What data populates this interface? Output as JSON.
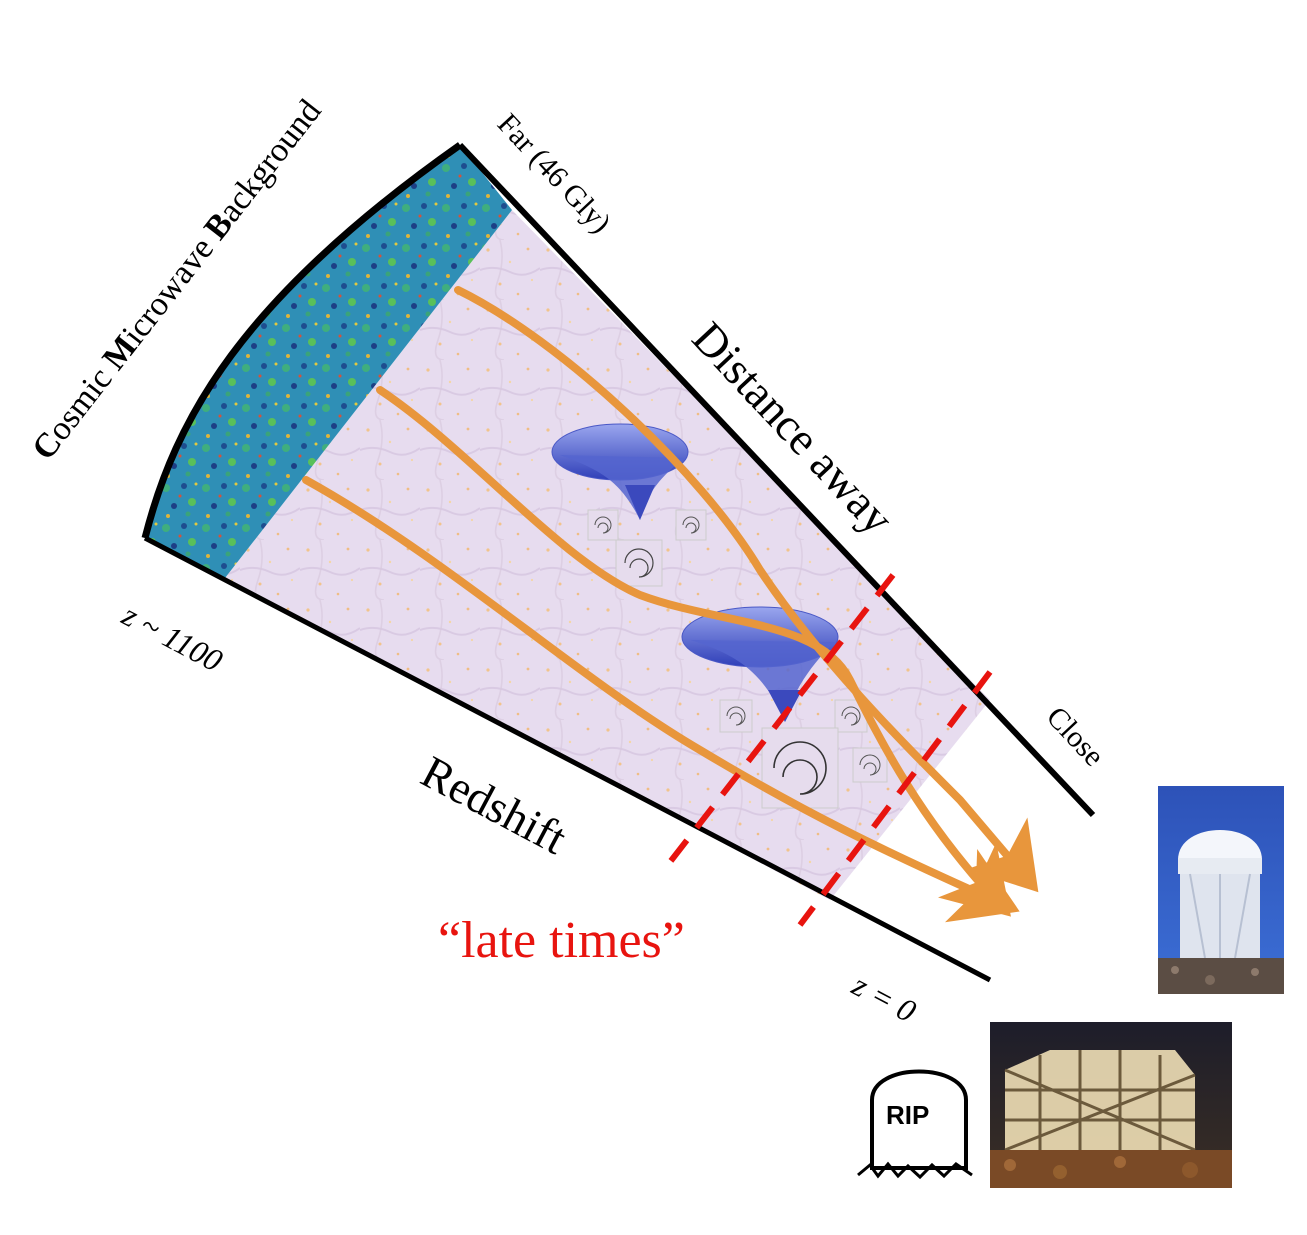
{
  "labels": {
    "cmb_prefix_c": "C",
    "cmb_part1": "osmic ",
    "cmb_prefix_m": "M",
    "cmb_part2": "icrowave ",
    "cmb_prefix_b": "B",
    "cmb_part3": "ackground",
    "far": "Far (46 Gly)",
    "distance": "Distance away",
    "close": "Close",
    "z_high": "z ~ 1100",
    "redshift": "Redshift",
    "z_zero": "z = 0",
    "late_times": "“late times”",
    "rip": "RIP"
  },
  "colors": {
    "light_path": "#e8963c",
    "late_times": "#e8140f",
    "cone_fill": "#e9dcef",
    "cmb_base": "#2a7fae",
    "border": "#000000"
  },
  "icons": {
    "cmb_map": "cmb-map-icon",
    "lens_well": "gravity-well-icon",
    "galaxy": "spiral-galaxy-icon",
    "telescope": "observatory-dome-photo",
    "survey_telescope": "survey-telescope-photo",
    "tombstone": "tombstone-icon"
  }
}
